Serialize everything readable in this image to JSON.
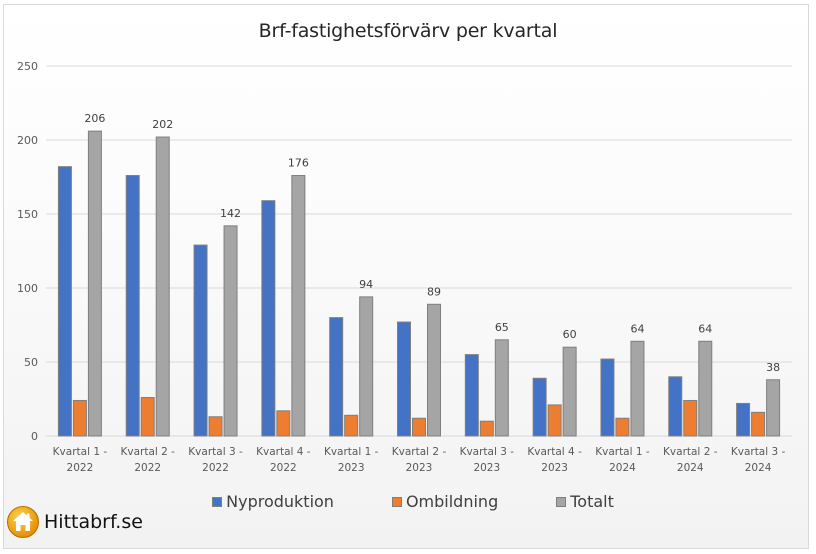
{
  "chart_data": {
    "type": "bar",
    "title": "Brf-fastighetsförvärv per kvartal",
    "xlabel": "",
    "ylabel": "",
    "ylim": [
      0,
      250
    ],
    "yticks": [
      0,
      50,
      100,
      150,
      200,
      250
    ],
    "grid": true,
    "legend_position": "bottom",
    "categories": [
      [
        "Kvartal 1 -",
        "2022"
      ],
      [
        "Kvartal 2 -",
        "2022"
      ],
      [
        "Kvartal 3 -",
        "2022"
      ],
      [
        "Kvartal 4 -",
        "2022"
      ],
      [
        "Kvartal 1 -",
        "2023"
      ],
      [
        "Kvartal 2 -",
        "2023"
      ],
      [
        "Kvartal 3 -",
        "2023"
      ],
      [
        "Kvartal 4 -",
        "2023"
      ],
      [
        "Kvartal 1 -",
        "2024"
      ],
      [
        "Kvartal 2 -",
        "2024"
      ],
      [
        "Kvartal 3 -",
        "2024"
      ]
    ],
    "series": [
      {
        "name": "Nyproduktion",
        "color": "#4472c4",
        "values": [
          182,
          176,
          129,
          159,
          80,
          77,
          55,
          39,
          52,
          40,
          22
        ],
        "show_labels": false
      },
      {
        "name": "Ombildning",
        "color": "#ed7d31",
        "values": [
          24,
          26,
          13,
          17,
          14,
          12,
          10,
          21,
          12,
          24,
          16
        ],
        "show_labels": false
      },
      {
        "name": "Totalt",
        "color": "#a5a5a5",
        "values": [
          206,
          202,
          142,
          176,
          94,
          89,
          65,
          60,
          64,
          64,
          38
        ],
        "show_labels": true
      }
    ]
  },
  "brand": {
    "name": "Hittabrf.se",
    "icon": "house-icon"
  }
}
